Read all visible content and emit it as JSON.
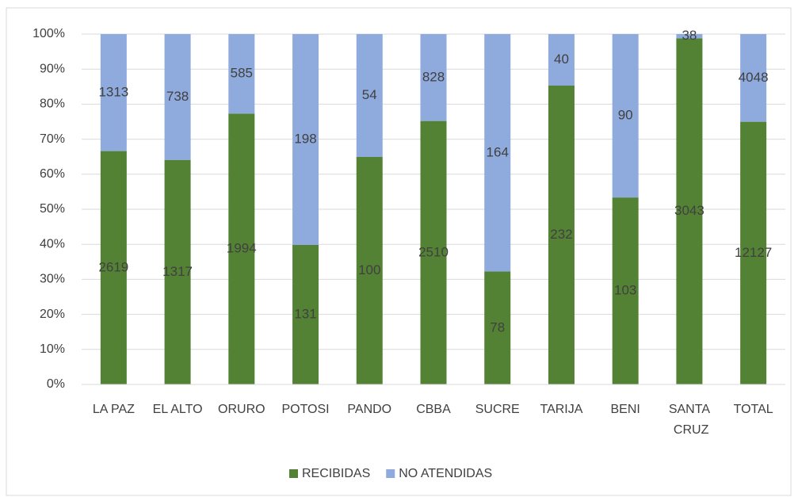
{
  "chart_data": {
    "type": "bar",
    "stacked": "percent",
    "categories": [
      "LA PAZ",
      "EL ALTO",
      "ORURO",
      "POTOSI",
      "PANDO",
      "CBBA",
      "SUCRE",
      "TARIJA",
      "BENI",
      "SANTA CRUZ",
      "TOTAL"
    ],
    "series": [
      {
        "name": "RECIBIDAS",
        "color": "#548235",
        "values": [
          2619,
          1317,
          1994,
          131,
          100,
          2510,
          78,
          232,
          103,
          3043,
          12127
        ]
      },
      {
        "name": "NO ATENDIDAS",
        "color": "#8faadc",
        "values": [
          1313,
          738,
          585,
          198,
          54,
          828,
          164,
          40,
          90,
          38,
          4048
        ]
      }
    ],
    "ylim": [
      0,
      100
    ],
    "yticks": [
      {
        "value": 0,
        "label": "0%"
      },
      {
        "value": 10,
        "label": "10%"
      },
      {
        "value": 20,
        "label": "20%"
      },
      {
        "value": 30,
        "label": "30%"
      },
      {
        "value": 40,
        "label": "40%"
      },
      {
        "value": 50,
        "label": "50%"
      },
      {
        "value": 60,
        "label": "60%"
      },
      {
        "value": 70,
        "label": "70%"
      },
      {
        "value": 80,
        "label": "80%"
      },
      {
        "value": 90,
        "label": "90%"
      },
      {
        "value": 100,
        "label": "100%"
      }
    ],
    "grid": true,
    "legend": "bottom"
  }
}
